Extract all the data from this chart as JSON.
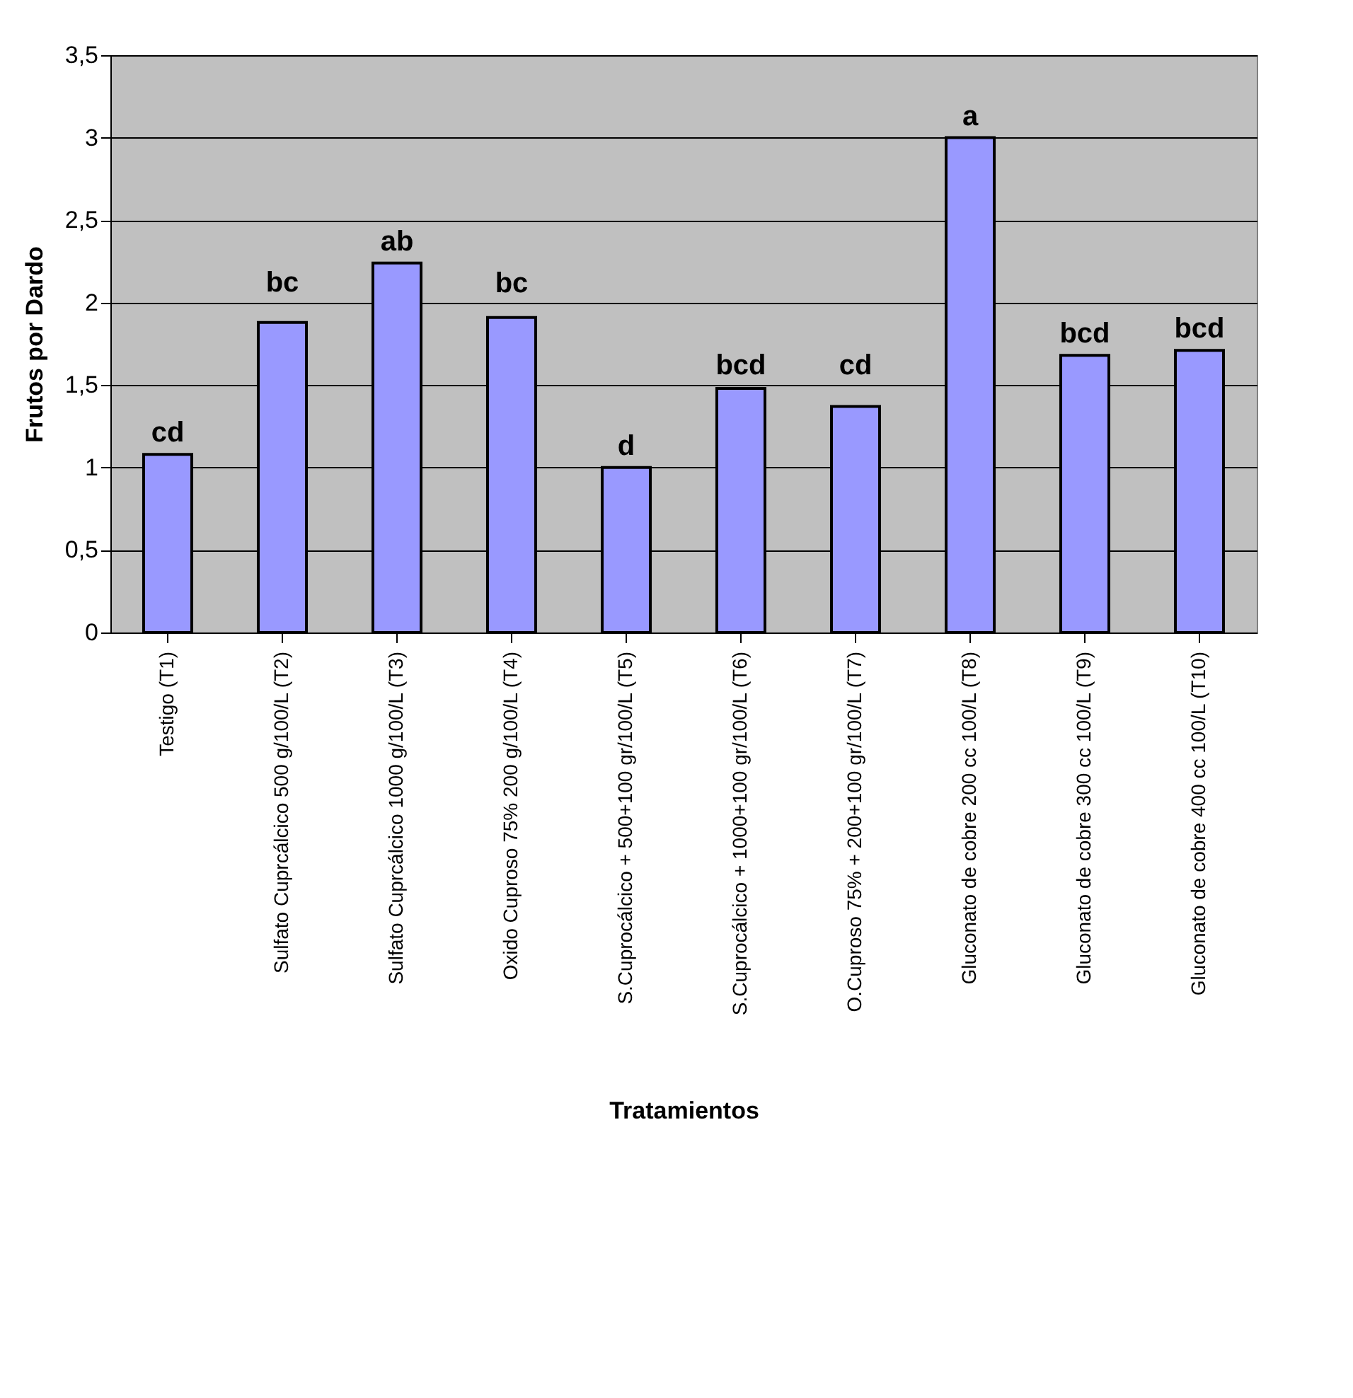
{
  "chart_data": {
    "type": "bar",
    "xlabel": "Tratamientos",
    "ylabel": "Frutos por Dardo",
    "categories": [
      "Testigo (T1)",
      "Sulfato Cuprcálcico 500 g/100/L (T2)",
      "Sulfato Cuprcálcico 1000 g/100/L (T3)",
      "Oxido Cuproso 75% 200 g/100/L (T4)",
      "S.Cuprocálcico + 500+100 gr/100/L (T5)",
      "S.Cuprocálcico + 1000+100 gr/100/L (T6)",
      "O.Cuproso 75% + 200+100 gr/100/L (T7)",
      "Gluconato de cobre 200 cc 100/L (T8)",
      "Gluconato de cobre 300 cc 100/L (T9)",
      "Gluconato de cobre 400 cc 100/L (T10)"
    ],
    "values": [
      1.08,
      1.88,
      2.24,
      1.91,
      1.0,
      1.48,
      1.37,
      3.0,
      1.68,
      1.71
    ],
    "color": "#9999ff",
    "ylim": [
      0,
      3.5
    ],
    "yticks": [
      0,
      {
        "value": 0.5,
        "label": "0,5"
      },
      1,
      {
        "value": 1.5,
        "label": "1,5"
      },
      2,
      {
        "value": 2.5,
        "label": "2,5"
      },
      3,
      {
        "value": 3.5,
        "label": "3,5"
      }
    ],
    "grid": "y",
    "annotations": [
      {
        "text": "cd",
        "x": "Testigo (T1)",
        "y": 1.08
      },
      {
        "text": "bc",
        "x": "Sulfato Cuprcálcico 500 g/100/L (T2)",
        "y": 1.88
      },
      {
        "text": "ab",
        "x": "Sulfato Cuprcálcico 1000 g/100/L (T3)",
        "y": 2.24
      },
      {
        "text": "bc",
        "x": "Oxido Cuproso 75% 200 g/100/L (T4)",
        "y": 1.91
      },
      {
        "text": "d",
        "x": "S.Cuprocálcico + 500+100 gr/100/L (T5)",
        "y": 1.0
      },
      {
        "text": "bcd",
        "x": "S.Cuprocálcico + 1000+100 gr/100/L (T6)",
        "y": 1.48
      },
      {
        "text": "cd",
        "x": "O.Cuproso 75% + 200+100 gr/100/L (T7)",
        "y": 1.37
      },
      {
        "text": "a",
        "x": "Gluconato de cobre 200 cc 100/L (T8)",
        "y": 3.0
      },
      {
        "text": "bcd",
        "x": "Gluconato de cobre 300 cc 100/L (T9)",
        "y": 1.68
      },
      {
        "text": "bcd",
        "x": "Gluconato de cobre 400 cc 100/L (T10)",
        "y": 1.71
      }
    ]
  }
}
